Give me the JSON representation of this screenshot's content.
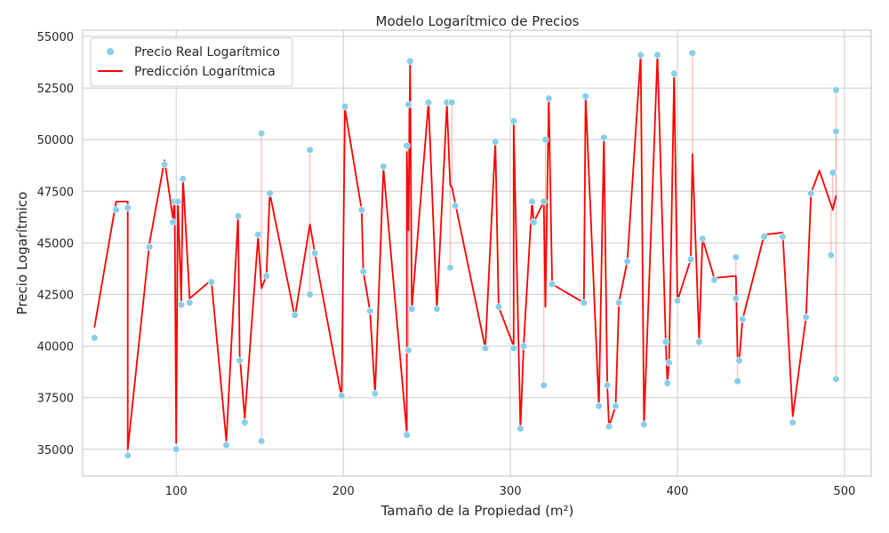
{
  "chart_data": {
    "type": "scatter",
    "title": "Modelo Logarítmico de Precios",
    "xlabel": "Tamaño de la Propiedad (m²)",
    "ylabel": "Precio Logarítmico",
    "xlim": [
      44,
      516
    ],
    "ylim": [
      33700,
      55300
    ],
    "xticks": [
      100,
      200,
      300,
      400,
      500
    ],
    "yticks": [
      35000,
      37500,
      40000,
      42500,
      45000,
      47500,
      50000,
      52500,
      55000
    ],
    "grid": true,
    "legend_position": "top-left",
    "colors": {
      "actual": "#87ceeb",
      "prediction": "#ff0000",
      "residual": "#ff9999",
      "grid": "#cccccc"
    },
    "series": [
      {
        "name": "Precio Real Logarítmico",
        "kind": "scatter",
        "points": [
          [
            51,
            40400
          ],
          [
            64,
            46600
          ],
          [
            71,
            46700
          ],
          [
            71,
            34700
          ],
          [
            84,
            44800
          ],
          [
            93,
            48800
          ],
          [
            98,
            46000
          ],
          [
            99,
            47000
          ],
          [
            100,
            35000
          ],
          [
            101,
            47000
          ],
          [
            103,
            42000
          ],
          [
            104,
            48100
          ],
          [
            108,
            42100
          ],
          [
            121,
            43100
          ],
          [
            130,
            35200
          ],
          [
            137,
            46300
          ],
          [
            138,
            39300
          ],
          [
            141,
            36300
          ],
          [
            149,
            45400
          ],
          [
            151,
            50300
          ],
          [
            151,
            35400
          ],
          [
            154,
            43400
          ],
          [
            156,
            47400
          ],
          [
            171,
            41500
          ],
          [
            180,
            42500
          ],
          [
            180,
            49500
          ],
          [
            183,
            44500
          ],
          [
            199,
            37600
          ],
          [
            201,
            51600
          ],
          [
            211,
            46600
          ],
          [
            212,
            43600
          ],
          [
            216,
            41700
          ],
          [
            219,
            37700
          ],
          [
            224,
            48700
          ],
          [
            238,
            35700
          ],
          [
            238,
            49700
          ],
          [
            239,
            51700
          ],
          [
            239,
            39800
          ],
          [
            240,
            53800
          ],
          [
            241,
            41800
          ],
          [
            251,
            51800
          ],
          [
            256,
            41800
          ],
          [
            262,
            51800
          ],
          [
            264,
            43800
          ],
          [
            265,
            51800
          ],
          [
            267,
            46800
          ],
          [
            285,
            39900
          ],
          [
            291,
            49900
          ],
          [
            293,
            41900
          ],
          [
            302,
            39900
          ],
          [
            302,
            50900
          ],
          [
            306,
            36000
          ],
          [
            308,
            40000
          ],
          [
            313,
            47000
          ],
          [
            314,
            46000
          ],
          [
            320,
            47000
          ],
          [
            321,
            50000
          ],
          [
            320,
            38100
          ],
          [
            323,
            52000
          ],
          [
            325,
            43000
          ],
          [
            344,
            42100
          ],
          [
            345,
            52100
          ],
          [
            353,
            37100
          ],
          [
            356,
            50100
          ],
          [
            358,
            38100
          ],
          [
            359,
            36100
          ],
          [
            363,
            37100
          ],
          [
            365,
            42100
          ],
          [
            370,
            44100
          ],
          [
            378,
            54100
          ],
          [
            380,
            36200
          ],
          [
            388,
            54100
          ],
          [
            393,
            40200
          ],
          [
            394,
            38200
          ],
          [
            395,
            39200
          ],
          [
            398,
            53200
          ],
          [
            400,
            42200
          ],
          [
            408,
            44200
          ],
          [
            409,
            54200
          ],
          [
            413,
            40200
          ],
          [
            415,
            45200
          ],
          [
            422,
            43200
          ],
          [
            435,
            44300
          ],
          [
            435,
            42300
          ],
          [
            436,
            38300
          ],
          [
            437,
            39300
          ],
          [
            439,
            41300
          ],
          [
            452,
            45300
          ],
          [
            463,
            45300
          ],
          [
            469,
            36300
          ],
          [
            477,
            41400
          ],
          [
            480,
            47400
          ],
          [
            492,
            44400
          ],
          [
            493,
            48400
          ],
          [
            495,
            52400
          ],
          [
            495,
            50400
          ],
          [
            495,
            38400
          ]
        ]
      },
      {
        "name": "Predicción Logarítmica",
        "kind": "line",
        "points": [
          [
            51,
            40900
          ],
          [
            64,
            47000
          ],
          [
            71,
            47000
          ],
          [
            71,
            35000
          ],
          [
            84,
            45000
          ],
          [
            93,
            49000
          ],
          [
            98,
            46200
          ],
          [
            99,
            47100
          ],
          [
            100,
            35300
          ],
          [
            101,
            47100
          ],
          [
            103,
            42200
          ],
          [
            104,
            48200
          ],
          [
            108,
            42300
          ],
          [
            121,
            43200
          ],
          [
            130,
            35400
          ],
          [
            137,
            46300
          ],
          [
            138,
            39600
          ],
          [
            141,
            36500
          ],
          [
            149,
            45300
          ],
          [
            151,
            42800
          ],
          [
            154,
            43400
          ],
          [
            156,
            47400
          ],
          [
            171,
            41400
          ],
          [
            180,
            45900
          ],
          [
            183,
            44500
          ],
          [
            199,
            37500
          ],
          [
            201,
            51500
          ],
          [
            211,
            46600
          ],
          [
            212,
            43600
          ],
          [
            216,
            41700
          ],
          [
            219,
            37700
          ],
          [
            224,
            48600
          ],
          [
            238,
            35800
          ],
          [
            238,
            49400
          ],
          [
            239,
            45600
          ],
          [
            240,
            53700
          ],
          [
            241,
            41800
          ],
          [
            251,
            51800
          ],
          [
            256,
            41800
          ],
          [
            262,
            51700
          ],
          [
            264,
            47800
          ],
          [
            265,
            47700
          ],
          [
            285,
            39900
          ],
          [
            291,
            49900
          ],
          [
            293,
            41900
          ],
          [
            302,
            40000
          ],
          [
            302,
            50800
          ],
          [
            306,
            36000
          ],
          [
            308,
            40100
          ],
          [
            313,
            47000
          ],
          [
            314,
            46000
          ],
          [
            320,
            47000
          ],
          [
            321,
            41900
          ],
          [
            323,
            52000
          ],
          [
            325,
            43000
          ],
          [
            344,
            42100
          ],
          [
            345,
            52100
          ],
          [
            353,
            37100
          ],
          [
            356,
            50100
          ],
          [
            358,
            38100
          ],
          [
            359,
            36100
          ],
          [
            363,
            37100
          ],
          [
            365,
            42100
          ],
          [
            370,
            44100
          ],
          [
            378,
            54100
          ],
          [
            380,
            36200
          ],
          [
            388,
            54100
          ],
          [
            393,
            40200
          ],
          [
            394,
            38200
          ],
          [
            395,
            39200
          ],
          [
            398,
            53200
          ],
          [
            400,
            42200
          ],
          [
            408,
            44200
          ],
          [
            409,
            49300
          ],
          [
            413,
            40300
          ],
          [
            415,
            45200
          ],
          [
            422,
            43300
          ],
          [
            435,
            43400
          ],
          [
            436,
            39300
          ],
          [
            437,
            39300
          ],
          [
            439,
            41300
          ],
          [
            452,
            45400
          ],
          [
            463,
            45500
          ],
          [
            469,
            36600
          ],
          [
            477,
            41400
          ],
          [
            480,
            47400
          ],
          [
            485,
            48500
          ],
          [
            493,
            46600
          ],
          [
            495,
            47300
          ]
        ]
      }
    ]
  }
}
